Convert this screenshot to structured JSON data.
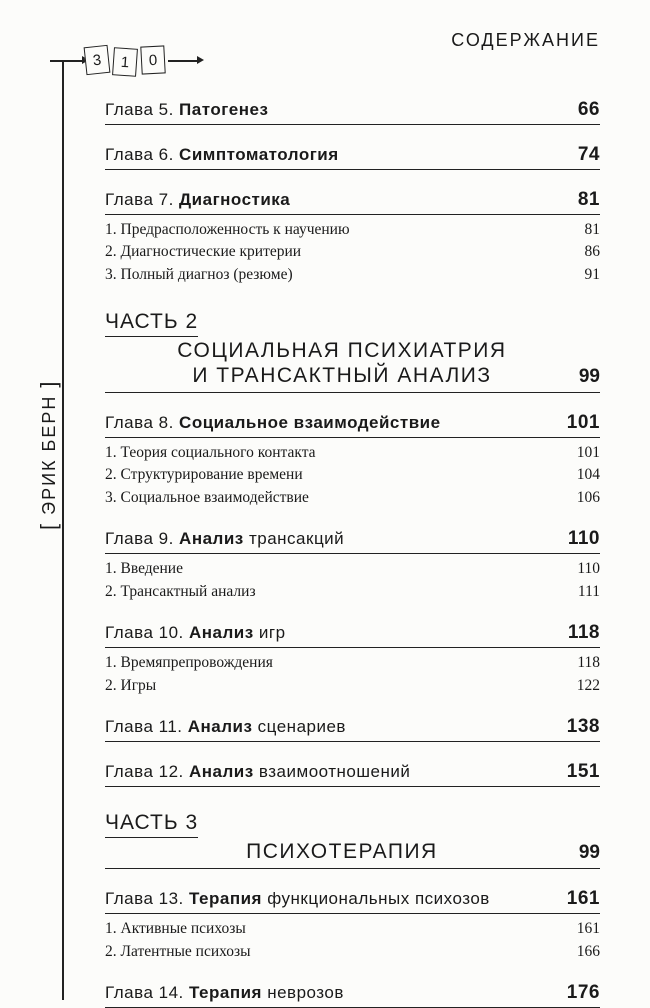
{
  "header": {
    "title": "СОДЕРЖАНИЕ",
    "author": "ЭРИК БЕРН",
    "page_digits": [
      "3",
      "1",
      "0"
    ]
  },
  "styling": {
    "background_color": "#fcfcfa",
    "text_color": "#1a1a1a",
    "rule_color": "#222",
    "serif_font": "Georgia",
    "sans_font": "Trebuchet MS",
    "header_fontsize": 18,
    "chapter_fontsize": 17,
    "chapter_page_fontsize": 19,
    "sub_fontsize": 15.5,
    "part_fontsize": 21
  },
  "toc": [
    {
      "type": "chapter",
      "prefix": "Глава 5.",
      "title_bold": "Патогенез",
      "title_light": "",
      "page": "66",
      "subs": []
    },
    {
      "type": "chapter",
      "prefix": "Глава 6.",
      "title_bold": "Симптоматология",
      "title_light": "",
      "page": "74",
      "subs": []
    },
    {
      "type": "chapter",
      "prefix": "Глава 7.",
      "title_bold": "Диагностика",
      "title_light": "",
      "page": "81",
      "subs": [
        {
          "label": "1. Предрасположенность к научению",
          "page": "81"
        },
        {
          "label": "2. Диагностические критерии",
          "page": "86"
        },
        {
          "label": "3. Полный диагноз (резюме)",
          "page": "91"
        }
      ]
    },
    {
      "type": "part",
      "part_label": "ЧАСТЬ 2",
      "part_title": "СОЦИАЛЬНАЯ ПСИХИАТРИЯ<br>И ТРАНСАКТНЫЙ АНАЛИЗ",
      "page": "99"
    },
    {
      "type": "chapter",
      "prefix": "Глава 8.",
      "title_bold": "Социальное взаимодействие",
      "title_light": "",
      "page": "101",
      "subs": [
        {
          "label": "1. Теория социального контакта",
          "page": "101"
        },
        {
          "label": "2. Структурирование времени",
          "page": "104"
        },
        {
          "label": "3. Социальное взаимодействие",
          "page": "106"
        }
      ]
    },
    {
      "type": "chapter",
      "prefix": "Глава 9.",
      "title_bold": "Анализ",
      "title_light": " трансакций",
      "page": "110",
      "subs": [
        {
          "label": "1. Введение",
          "page": "110"
        },
        {
          "label": "2. Трансактный анализ",
          "page": "111"
        }
      ]
    },
    {
      "type": "chapter",
      "prefix": "Глава 10.",
      "title_bold": "Анализ",
      "title_light": " игр",
      "page": "118",
      "subs": [
        {
          "label": "1. Времяпрепровождения",
          "page": "118"
        },
        {
          "label": "2. Игры",
          "page": "122"
        }
      ]
    },
    {
      "type": "chapter",
      "prefix": "Глава 11.",
      "title_bold": "Анализ",
      "title_light": " сценариев",
      "page": "138",
      "subs": []
    },
    {
      "type": "chapter",
      "prefix": "Глава 12.",
      "title_bold": "Анализ",
      "title_light": " взаимоотношений",
      "page": "151",
      "subs": []
    },
    {
      "type": "part",
      "part_label": "ЧАСТЬ 3",
      "part_title": "ПСИХОТЕРАПИЯ",
      "page": "99"
    },
    {
      "type": "chapter",
      "prefix": "Глава 13.",
      "title_bold": "Терапия",
      "title_light": " функциональных психозов",
      "page": "161",
      "subs": [
        {
          "label": "1. Активные психозы",
          "page": "161"
        },
        {
          "label": "2. Латентные психозы",
          "page": "166"
        }
      ]
    },
    {
      "type": "chapter",
      "prefix": "Глава 14.",
      "title_bold": "Терапия",
      "title_light": " неврозов",
      "page": "176",
      "subs": []
    }
  ]
}
